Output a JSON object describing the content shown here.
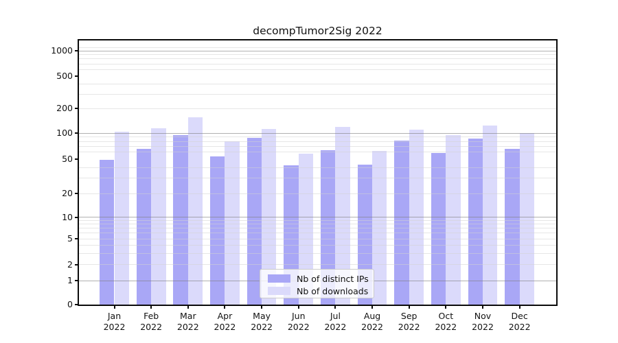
{
  "figure": {
    "title": "decompTumor2Sig 2022"
  },
  "chart_data": {
    "type": "bar",
    "title": "decompTumor2Sig 2022",
    "categories": [
      "Jan 2022",
      "Feb 2022",
      "Mar 2022",
      "Apr 2022",
      "May 2022",
      "Jun 2022",
      "Jul 2022",
      "Aug 2022",
      "Sep 2022",
      "Oct 2022",
      "Nov 2022",
      "Dec 2022"
    ],
    "series": [
      {
        "name": "Nb of distinct IPs",
        "color": "#a9a7f6",
        "values": [
          49,
          66,
          96,
          54,
          88,
          42,
          63,
          43,
          82,
          59,
          86,
          66
        ]
      },
      {
        "name": "Nb of downloads",
        "color": "#dbdafb",
        "values": [
          104,
          116,
          157,
          81,
          113,
          58,
          119,
          62,
          111,
          95,
          124,
          101
        ]
      }
    ],
    "xlabel": "",
    "ylabel": "",
    "y_scale": "symlog",
    "y_ticks": [
      0,
      1,
      2,
      5,
      10,
      20,
      50,
      100,
      200,
      500,
      1000
    ],
    "y_major_gridlines": [
      1,
      10,
      100,
      1000
    ],
    "y_minor_gridlines": [
      2,
      3,
      4,
      5,
      6,
      7,
      8,
      9,
      20,
      30,
      40,
      60,
      70,
      80,
      90,
      200,
      300,
      400,
      600,
      700,
      800,
      900,
      1100
    ],
    "ylim": [
      0,
      1250
    ],
    "grid": true,
    "legend_position": "bottom-center"
  },
  "colors": {
    "bar_ips": "#a9a7f6",
    "bar_downloads": "#dbdafb",
    "grid_major": "#bfbfbf",
    "grid_minor": "#ececec",
    "spine": "#0a0a0a",
    "text": "#111111",
    "legend_border": "#cbcbcb"
  }
}
